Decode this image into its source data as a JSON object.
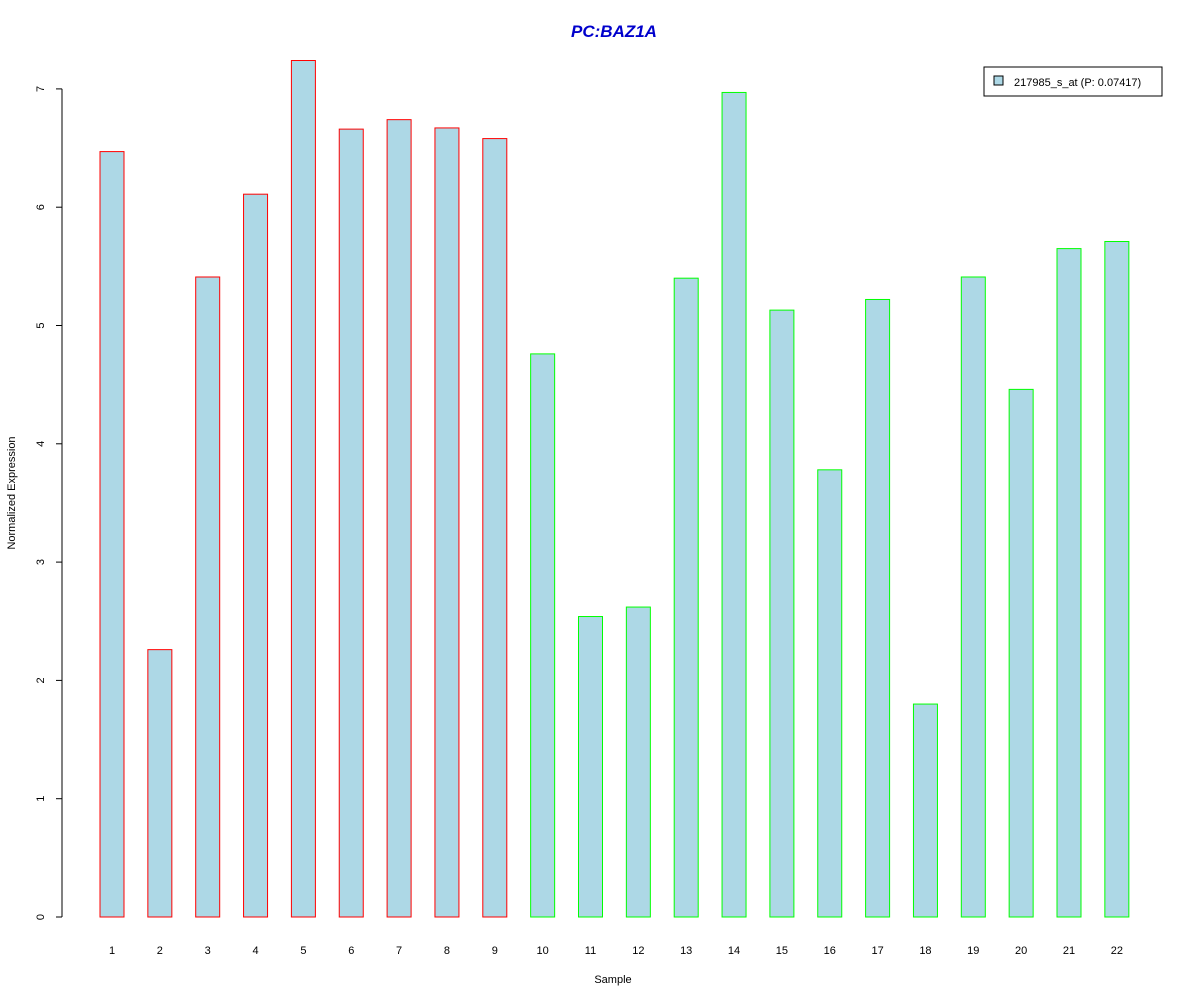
{
  "chart_data": {
    "type": "bar",
    "title": "PC:BAZ1A",
    "xlabel": "Sample",
    "ylabel": "Normalized Expression",
    "categories": [
      "1",
      "2",
      "3",
      "4",
      "5",
      "6",
      "7",
      "8",
      "9",
      "10",
      "11",
      "12",
      "13",
      "14",
      "15",
      "16",
      "17",
      "18",
      "19",
      "20",
      "21",
      "22"
    ],
    "values": [
      6.47,
      2.26,
      5.41,
      6.11,
      7.24,
      6.66,
      6.74,
      6.67,
      6.58,
      4.76,
      2.54,
      2.62,
      5.4,
      6.97,
      5.13,
      3.78,
      5.22,
      1.8,
      5.41,
      4.46,
      5.65,
      5.71
    ],
    "border_colors": [
      "#ff0000",
      "#ff0000",
      "#ff0000",
      "#ff0000",
      "#ff0000",
      "#ff0000",
      "#ff0000",
      "#ff0000",
      "#ff0000",
      "#00ff00",
      "#00ff00",
      "#00ff00",
      "#00ff00",
      "#00ff00",
      "#00ff00",
      "#00ff00",
      "#00ff00",
      "#00ff00",
      "#00ff00",
      "#00ff00",
      "#00ff00",
      "#00ff00"
    ],
    "fill_color": "#add8e6",
    "title_color": "#0000cc",
    "yticks": [
      0,
      1,
      2,
      3,
      4,
      5,
      6,
      7
    ],
    "ylim": [
      0,
      7.3
    ],
    "grid": false,
    "legend": {
      "position": "top-right",
      "entries": [
        {
          "label": "217985_s_at (P: 0.07417)",
          "color": "#add8e6"
        }
      ]
    }
  }
}
